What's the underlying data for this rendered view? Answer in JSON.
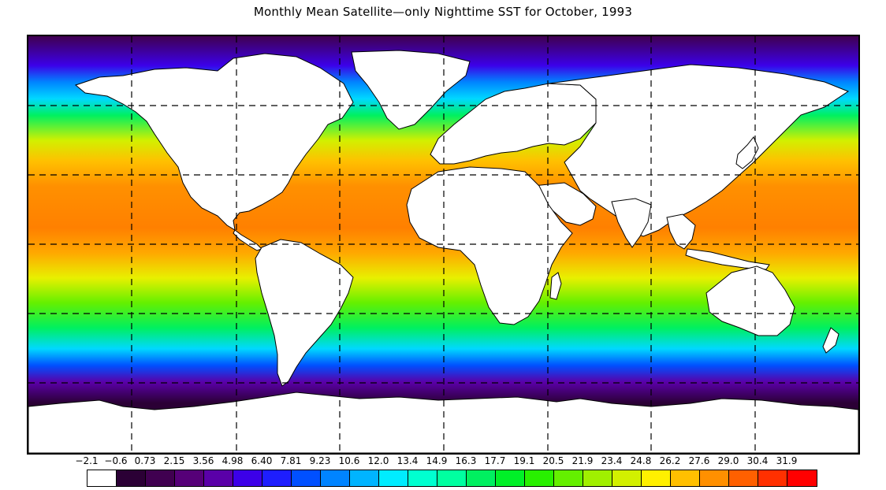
{
  "title": "Monthly Mean Satellite—only Nighttime SST for October, 1993",
  "colorbar": {
    "labels": [
      "−2.1",
      "−0.6",
      "0.73",
      "2.15",
      "3.56",
      "4.98",
      "6.40",
      "7.81",
      "9.23",
      "10.6",
      "12.0",
      "13.4",
      "14.9",
      "16.3",
      "17.7",
      "19.1",
      "20.5",
      "21.9",
      "23.4",
      "24.8",
      "26.2",
      "27.6",
      "29.0",
      "30.4",
      "31.9"
    ],
    "colors": [
      "#ffffff",
      "#2b0035",
      "#400050",
      "#560078",
      "#5a00a8",
      "#3c00e8",
      "#1e1efe",
      "#0050ff",
      "#0084ff",
      "#00b4ff",
      "#00ecff",
      "#00ffd0",
      "#00ffa0",
      "#00f060",
      "#00f028",
      "#28f000",
      "#64f000",
      "#a0f000",
      "#d2f000",
      "#fff000",
      "#ffc000",
      "#ff9000",
      "#ff6000",
      "#ff3000",
      "#ff0000"
    ]
  },
  "map": {
    "projection": "equirectangular",
    "grid": "dashed, 60° longitude × 30° latitude",
    "land_color": "#ffffff",
    "coastline_color": "#000000"
  }
}
